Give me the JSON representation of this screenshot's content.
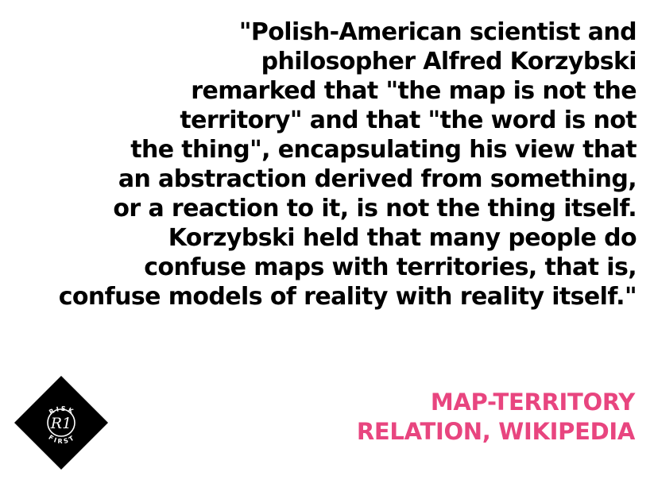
{
  "quote": {
    "lines": [
      "\"Polish-American scientist and",
      "philosopher Alfred Korzybski",
      "remarked that \"the map is not the",
      "territory\" and that \"the word is not",
      "the thing\", encapsulating his view that",
      "an abstraction derived from something,",
      "or a reaction to it, is not the thing itself.",
      "Korzybski held that many people do",
      "confuse maps with territories, that is,",
      "confuse models of reality with reality itself.\""
    ]
  },
  "attribution": {
    "lines": [
      "MAP-TERRITORY",
      "RELATION, WIKIPEDIA"
    ],
    "color": "#e8457f"
  },
  "logo": {
    "background_color": "#000000",
    "foreground_color": "#ffffff",
    "top_text": "RISK",
    "bottom_text": "FIRST",
    "monogram": "R1"
  }
}
